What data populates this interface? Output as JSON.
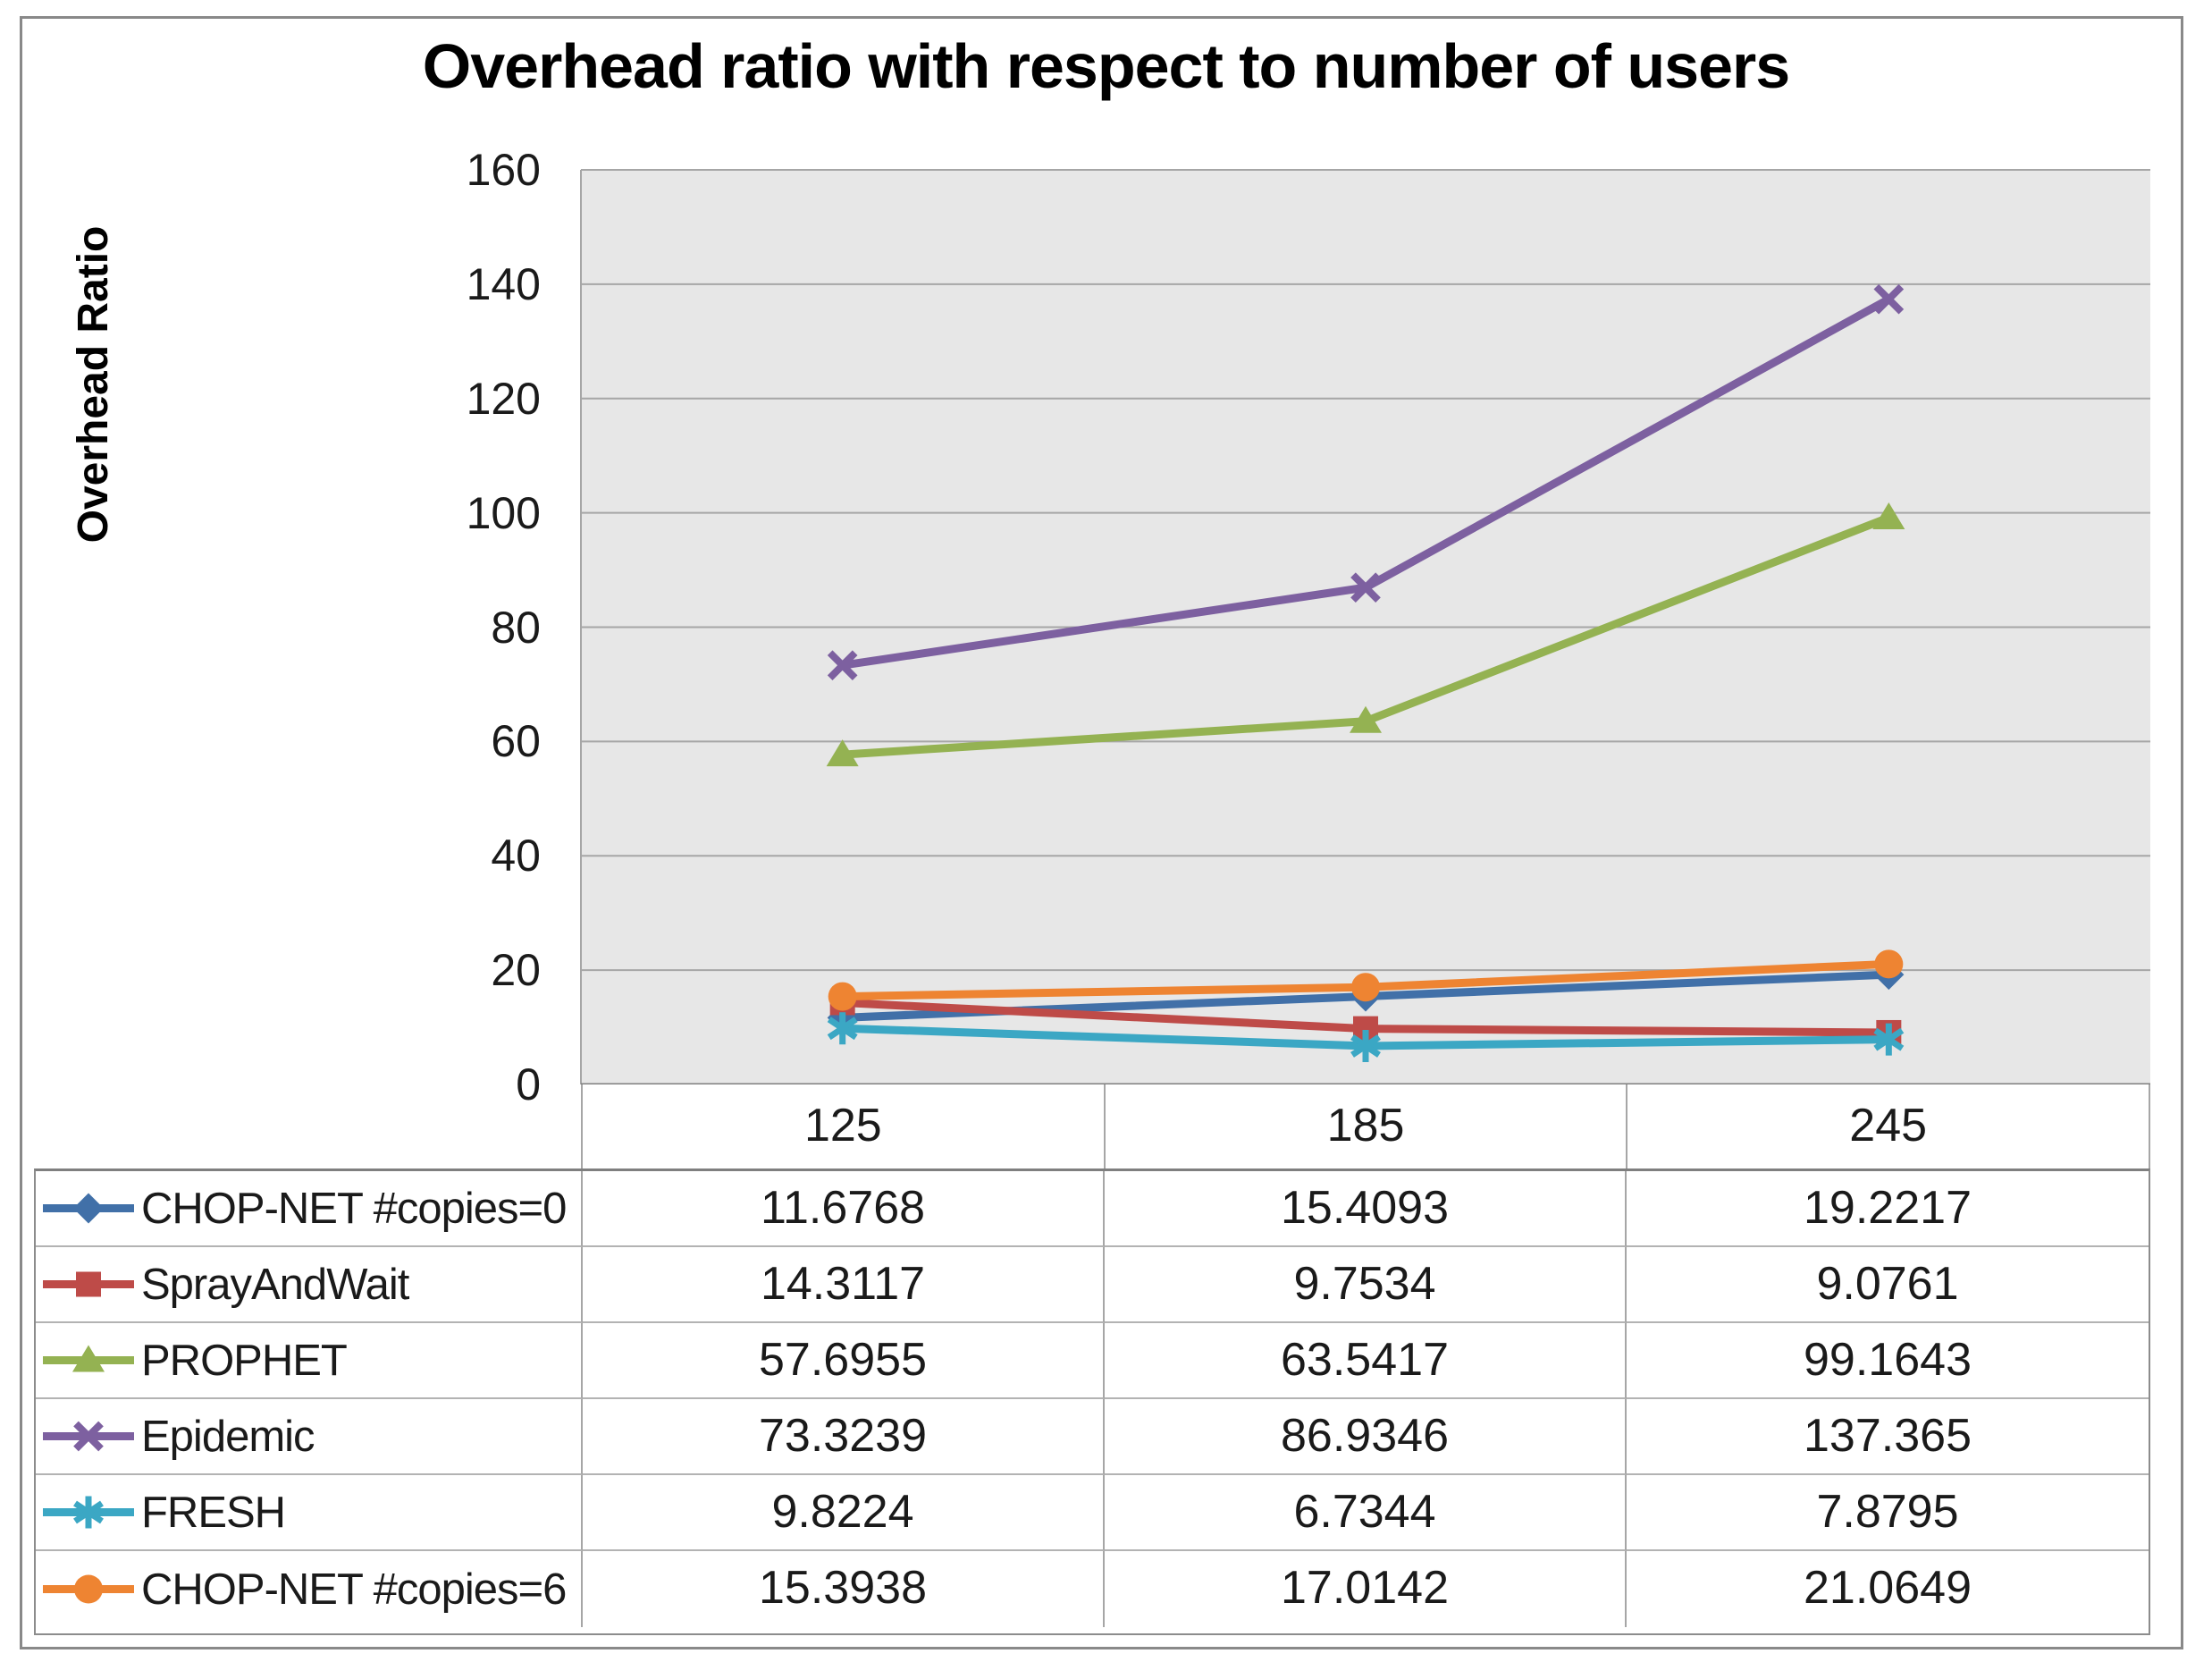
{
  "chart_data": {
    "type": "line",
    "title": "Overhead ratio with respect to number of users",
    "ylabel": "Overhead Ratio",
    "xlabel": "",
    "categories": [
      "125",
      "185",
      "245"
    ],
    "yticks": [
      "0",
      "20",
      "40",
      "60",
      "80",
      "100",
      "120",
      "140",
      "160"
    ],
    "ylim": [
      0,
      160
    ],
    "ytick_step": 20,
    "grid": true,
    "legend_position": "table-left-column",
    "colors": {
      "plot_bg": "#E7E7E7",
      "gridline": "#A6A6A6",
      "axis": "#7F7F7F",
      "text": "#1A1A1A"
    },
    "series": [
      {
        "name": "CHOP-NET #copies=0",
        "marker": "diamond",
        "color": "#4170A8",
        "values": [
          11.6768,
          15.4093,
          19.2217
        ],
        "display": [
          "11.6768",
          "15.4093",
          "19.2217"
        ]
      },
      {
        "name": "SprayAndWait",
        "marker": "square",
        "color": "#BE4B48",
        "values": [
          14.3117,
          9.7534,
          9.0761
        ],
        "display": [
          "14.3117",
          "9.7534",
          "9.0761"
        ]
      },
      {
        "name": "PROPHET",
        "marker": "triangle",
        "color": "#94B252",
        "values": [
          57.6955,
          63.5417,
          99.1643
        ],
        "display": [
          "57.6955",
          "63.5417",
          "99.1643"
        ]
      },
      {
        "name": "Epidemic",
        "marker": "x",
        "color": "#7D60A0",
        "values": [
          73.3239,
          86.9346,
          137.365
        ],
        "display": [
          "73.3239",
          "86.9346",
          "137.365"
        ]
      },
      {
        "name": "FRESH",
        "marker": "asterisk",
        "color": "#3BA7C4",
        "values": [
          9.8224,
          6.7344,
          7.8795
        ],
        "display": [
          "9.8224",
          "6.7344",
          "7.8795"
        ]
      },
      {
        "name": "CHOP-NET #copies=6",
        "marker": "circle",
        "color": "#EE8432",
        "values": [
          15.3938,
          17.0142,
          21.0649
        ],
        "display": [
          "15.3938",
          "17.0142",
          "21.0649"
        ]
      }
    ]
  }
}
